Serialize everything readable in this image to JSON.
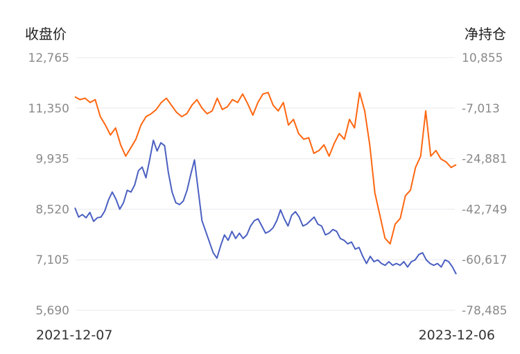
{
  "chart_data": {
    "type": "line",
    "left_axis_title": "收盘价",
    "right_axis_title": "净持仓",
    "left_ticks": [
      "12,765",
      "11,350",
      "9,935",
      "8,520",
      "7,105",
      "5,690"
    ],
    "right_ticks": [
      "10,855",
      "-7,013",
      "-24,881",
      "-42,749",
      "-60,617",
      "-78,485"
    ],
    "left_ylim": [
      5690,
      12765
    ],
    "right_ylim": [
      -78485,
      10855
    ],
    "x_start_label": "2021-12-07",
    "x_end_label": "2023-12-06",
    "grid": true,
    "series": [
      {
        "axis": "left",
        "color": "#4a5fc1",
        "values": [
          8560,
          8300,
          8370,
          8280,
          8430,
          8180,
          8280,
          8300,
          8470,
          8780,
          9000,
          8800,
          8520,
          8700,
          9050,
          9000,
          9200,
          9600,
          9700,
          9400,
          9900,
          10450,
          10150,
          10380,
          10300,
          9550,
          9000,
          8700,
          8650,
          8750,
          9050,
          9500,
          9900,
          9050,
          8200,
          7900,
          7600,
          7300,
          7150,
          7500,
          7800,
          7650,
          7900,
          7700,
          7850,
          7700,
          7800,
          8050,
          8200,
          8250,
          8050,
          7850,
          7900,
          8000,
          8200,
          8500,
          8250,
          8050,
          8350,
          8450,
          8300,
          8050,
          8100,
          8200,
          8300,
          8100,
          8050,
          7800,
          7850,
          7950,
          7900,
          7700,
          7650,
          7550,
          7600,
          7400,
          7450,
          7200,
          7000,
          7200,
          7050,
          7100,
          7000,
          6950,
          7050,
          6950,
          7000,
          6950,
          7050,
          6900,
          7050,
          7100,
          7250,
          7300,
          7100,
          7000,
          6950,
          7000,
          6900,
          7100,
          7050,
          6900,
          6700
        ]
      },
      {
        "axis": "right",
        "color": "#ff6610",
        "values": [
          -3000,
          -4000,
          -3500,
          -5000,
          -4000,
          -10000,
          -13000,
          -16500,
          -14000,
          -20000,
          -24000,
          -21000,
          -18000,
          -13000,
          -10000,
          -9000,
          -7500,
          -5000,
          -3500,
          -6000,
          -8500,
          -10000,
          -9000,
          -6000,
          -4000,
          -7000,
          -9000,
          -8000,
          -3500,
          -7500,
          -6500,
          -4000,
          -5000,
          -2000,
          -5500,
          -9500,
          -5000,
          -2000,
          -1500,
          -6000,
          -8000,
          -5000,
          -13000,
          -11000,
          -16000,
          -18000,
          -17500,
          -23000,
          -22000,
          -20000,
          -24000,
          -19500,
          -16000,
          -18000,
          -11000,
          -14000,
          -1500,
          -8000,
          -20000,
          -37000,
          -45000,
          -53000,
          -55000,
          -48000,
          -46000,
          -38000,
          -36000,
          -28000,
          -24000,
          -8000,
          -24000,
          -22000,
          -25000,
          -26000,
          -28000,
          -27000
        ]
      }
    ]
  }
}
